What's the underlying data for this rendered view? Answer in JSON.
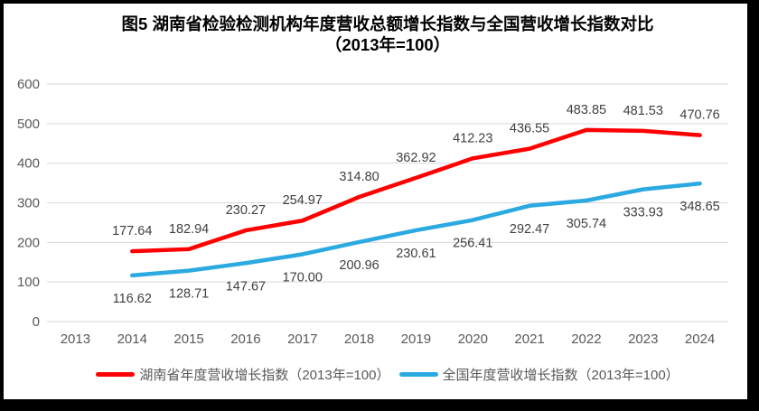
{
  "window": {
    "frame_color": "#000000",
    "canvas_color": "#ffffff"
  },
  "chart_data": {
    "type": "line",
    "title": "图5 湖南省检验检测机构年度营收总额增长指数与全国营收增长指数对比",
    "subtitle": "（2013年=100）",
    "categories": [
      "2013",
      "2014",
      "2015",
      "2016",
      "2017",
      "2018",
      "2019",
      "2020",
      "2021",
      "2022",
      "2023",
      "2024"
    ],
    "series": [
      {
        "name": "湖南省年度营收增长指数（2013年=100）",
        "color": "#FE0000",
        "label_position": "above",
        "values": [
          null,
          177.64,
          182.94,
          230.27,
          254.97,
          314.8,
          362.92,
          412.23,
          436.55,
          483.85,
          481.53,
          470.76
        ],
        "value_labels": [
          "",
          "177.64",
          "182.94",
          "230.27",
          "254.97",
          "314.80",
          "362.92",
          "412.23",
          "436.55",
          "483.85",
          "481.53",
          "470.76"
        ]
      },
      {
        "name": "全国年度营收增长指数（2013年=100）",
        "color": "#2BA9E1",
        "label_position": "below",
        "values": [
          null,
          116.62,
          128.71,
          147.67,
          170.0,
          200.96,
          230.61,
          256.41,
          292.47,
          305.74,
          333.93,
          348.65
        ],
        "value_labels": [
          "",
          "116.62",
          "128.71",
          "147.67",
          "170.00",
          "200.96",
          "230.61",
          "256.41",
          "292.47",
          "305.74",
          "333.93",
          "348.65"
        ]
      }
    ],
    "y_axis": {
      "min": 0,
      "max": 600,
      "ticks": [
        0,
        100,
        200,
        300,
        400,
        500,
        600
      ]
    },
    "x_axis_label_row": [
      "2013",
      "2014",
      "2015",
      "2016",
      "2017",
      "2018",
      "2019",
      "2020",
      "2021",
      "2022",
      "2023",
      "2024"
    ],
    "grid": true,
    "legend_position": "bottom",
    "colors": {
      "gridline": "#D9D9D9",
      "axis_text": "#595959",
      "data_label": "#404040",
      "title_text": "#000000"
    }
  }
}
